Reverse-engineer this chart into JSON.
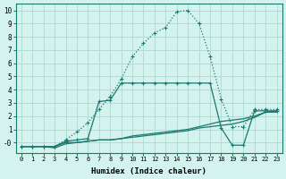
{
  "x": [
    0,
    1,
    2,
    3,
    4,
    5,
    6,
    7,
    8,
    9,
    10,
    11,
    12,
    13,
    14,
    15,
    16,
    17,
    18,
    19,
    20,
    21,
    22,
    23
  ],
  "series_peak": [
    -0.3,
    -0.3,
    -0.3,
    -0.3,
    0.2,
    0.8,
    1.5,
    2.5,
    3.5,
    4.8,
    6.5,
    7.5,
    8.3,
    8.7,
    9.9,
    10.0,
    9.0,
    6.5,
    3.3,
    1.2,
    1.2,
    2.5,
    2.5,
    2.5
  ],
  "series_mid1": [
    -0.3,
    -0.3,
    -0.3,
    -0.3,
    0.1,
    0.2,
    0.3,
    3.1,
    3.2,
    4.5,
    4.5,
    4.5,
    4.5,
    4.5,
    4.5,
    4.5,
    4.5,
    4.5,
    1.1,
    -0.2,
    -0.2,
    2.4,
    2.4,
    2.4
  ],
  "series_low1": [
    -0.3,
    -0.3,
    -0.3,
    -0.3,
    0.0,
    0.0,
    0.1,
    0.2,
    0.2,
    0.3,
    0.5,
    0.6,
    0.7,
    0.8,
    0.9,
    1.0,
    1.2,
    1.4,
    1.6,
    1.7,
    1.8,
    2.0,
    2.3,
    2.4
  ],
  "series_low2": [
    -0.3,
    -0.3,
    -0.3,
    -0.4,
    -0.1,
    0.0,
    0.1,
    0.2,
    0.2,
    0.3,
    0.4,
    0.5,
    0.6,
    0.7,
    0.8,
    0.9,
    1.1,
    1.2,
    1.3,
    1.4,
    1.6,
    1.9,
    2.3,
    2.3
  ],
  "color": "#1a7a6e",
  "bg_color": "#d4f2ee",
  "grid_color": "#aed8d2",
  "xlabel": "Humidex (Indice chaleur)",
  "ylim": [
    -0.8,
    10.5
  ],
  "xlim": [
    -0.5,
    23.5
  ],
  "yticks": [
    0,
    1,
    2,
    3,
    4,
    5,
    6,
    7,
    8,
    9,
    10
  ],
  "ytick_labels": [
    "-0",
    "1",
    "2",
    "3",
    "4",
    "5",
    "6",
    "7",
    "8",
    "9",
    "10"
  ],
  "xtick_labels": [
    "0",
    "1",
    "2",
    "3",
    "4",
    "5",
    "6",
    "7",
    "8",
    "9",
    "10",
    "11",
    "12",
    "13",
    "14",
    "15",
    "16",
    "17",
    "18",
    "19",
    "20",
    "21",
    "22",
    "23"
  ]
}
